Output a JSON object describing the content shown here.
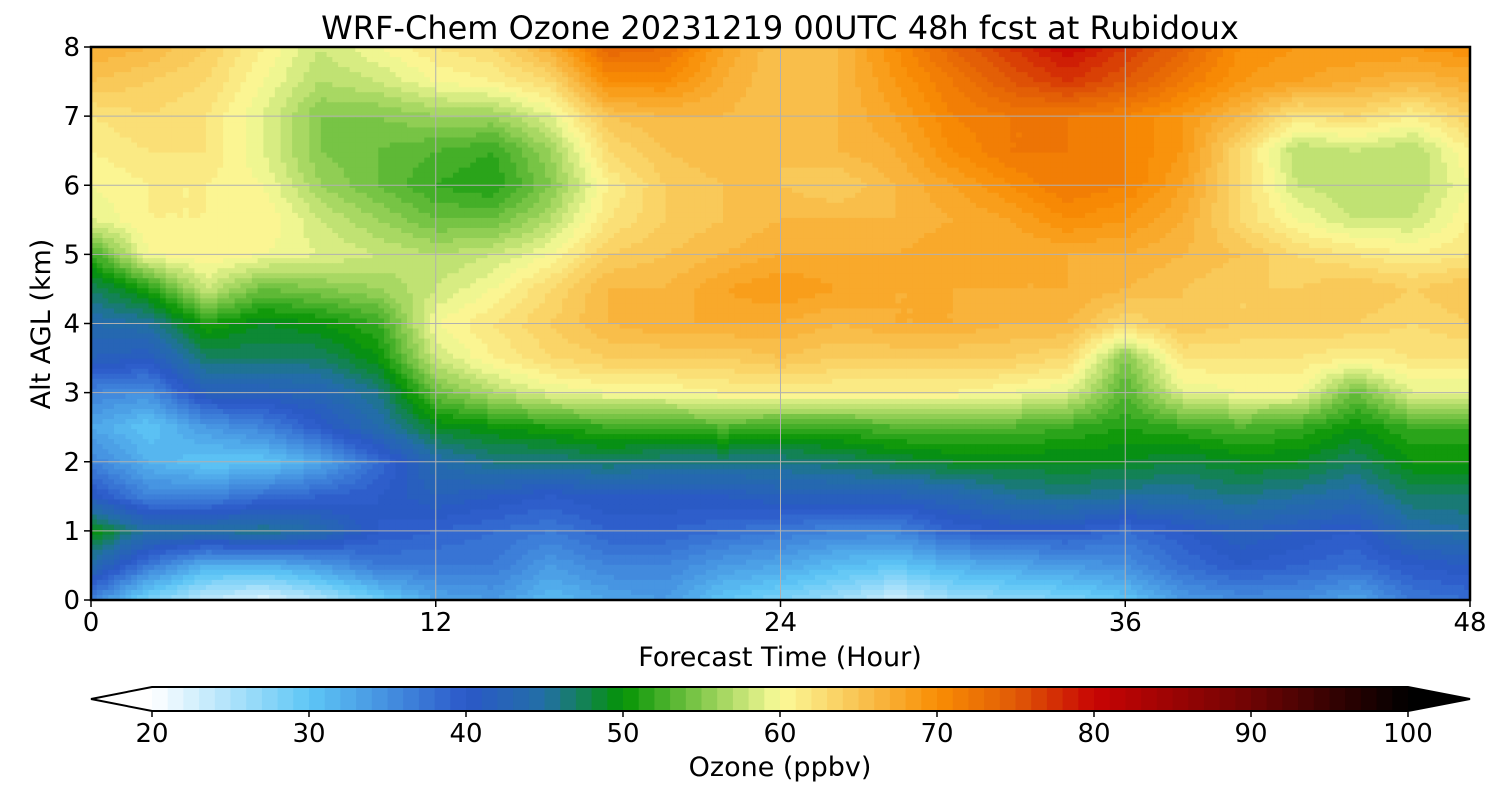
{
  "chart_data": {
    "type": "heatmap",
    "title": "WRF-Chem Ozone  20231219 00UTC 48h fcst at Rubidoux",
    "xlabel": "Forecast Time (Hour)",
    "ylabel": "Alt AGL (km)",
    "xlim": [
      0,
      48
    ],
    "ylim": [
      0,
      8
    ],
    "x_ticks": [
      "0",
      "12",
      "24",
      "36",
      "48"
    ],
    "y_ticks": [
      "0",
      "1",
      "2",
      "3",
      "4",
      "5",
      "6",
      "7",
      "8"
    ],
    "grid": true,
    "x": [
      0,
      2,
      4,
      6,
      8,
      10,
      12,
      14,
      16,
      18,
      20,
      22,
      24,
      26,
      28,
      30,
      32,
      34,
      36,
      38,
      40,
      42,
      44,
      46,
      48
    ],
    "y": [
      0,
      0.5,
      1,
      1.5,
      2,
      2.5,
      3,
      3.5,
      4,
      4.5,
      5,
      5.5,
      6,
      6.5,
      7,
      7.5,
      8
    ],
    "z_ppbv": [
      [
        36,
        28,
        24,
        22,
        25,
        29,
        33,
        34,
        31,
        33,
        34,
        30,
        28,
        26,
        23,
        26,
        27,
        28,
        30,
        34,
        35,
        35,
        33,
        37,
        38
      ],
      [
        44,
        37,
        32,
        32,
        34,
        37,
        37,
        37,
        34,
        36,
        36,
        34,
        33,
        31,
        30,
        32,
        33,
        34,
        35,
        38,
        40,
        39,
        38,
        40,
        41
      ],
      [
        50,
        45,
        45,
        46,
        44,
        40,
        39,
        38,
        37,
        39,
        39,
        38,
        37,
        36,
        36,
        39,
        40,
        40,
        38,
        40,
        42,
        41,
        40,
        44,
        45
      ],
      [
        41,
        36,
        36,
        38,
        39,
        40,
        42,
        41,
        40,
        41,
        41,
        41,
        42,
        42,
        42,
        43,
        45,
        46,
        45,
        45,
        46,
        45,
        44,
        47,
        47
      ],
      [
        36,
        32,
        30,
        30,
        33,
        38,
        44,
        46,
        46,
        47,
        46,
        46,
        46,
        47,
        48,
        49,
        49,
        49,
        49,
        48,
        49,
        49,
        47,
        50,
        50
      ],
      [
        33,
        30,
        34,
        36,
        40,
        44,
        49,
        50,
        51,
        52,
        52,
        53,
        52,
        52,
        53,
        53,
        53,
        52,
        51,
        52,
        53,
        52,
        50,
        52,
        52
      ],
      [
        36,
        35,
        42,
        42,
        43,
        46,
        54,
        57,
        59,
        60,
        60,
        61,
        61,
        61,
        61,
        61,
        60,
        59,
        53,
        59,
        60,
        60,
        54,
        59,
        59
      ],
      [
        42,
        41,
        47,
        47,
        47,
        50,
        58,
        61,
        63,
        64,
        64,
        64,
        65,
        64,
        64,
        64,
        64,
        63,
        55,
        62,
        62,
        62,
        61,
        62,
        62
      ],
      [
        44,
        45,
        51,
        49,
        50,
        52,
        60,
        62,
        64,
        66,
        67,
        67,
        67,
        66,
        67,
        67,
        66,
        66,
        63,
        65,
        64,
        64,
        64,
        63,
        64
      ],
      [
        47,
        51,
        58,
        54,
        55,
        56,
        58,
        60,
        63,
        66,
        66,
        68,
        69,
        68,
        67,
        67,
        67,
        67,
        66,
        65,
        64,
        64,
        65,
        64,
        65
      ],
      [
        52,
        60,
        61,
        60,
        59,
        58,
        57,
        58,
        60,
        64,
        65,
        66,
        67,
        67,
        67,
        68,
        67,
        67,
        67,
        66,
        65,
        63,
        62,
        61,
        62
      ],
      [
        59,
        61,
        61,
        61,
        58,
        56,
        54,
        54,
        57,
        62,
        64,
        65,
        66,
        66,
        66,
        67,
        68,
        70,
        69,
        67,
        63,
        60,
        58,
        58,
        61
      ],
      [
        60,
        61,
        61,
        60,
        56,
        54,
        52,
        51,
        55,
        61,
        64,
        65,
        65,
        64,
        66,
        68,
        70,
        72,
        71,
        68,
        63,
        58,
        57,
        57,
        60
      ],
      [
        61,
        62,
        62,
        59,
        55,
        54,
        53,
        52,
        56,
        63,
        65,
        66,
        65,
        66,
        67,
        70,
        72,
        72,
        71,
        69,
        63,
        57,
        58,
        57,
        61
      ],
      [
        62,
        63,
        62,
        59,
        55,
        55,
        56,
        56,
        59,
        65,
        66,
        66,
        65,
        66,
        68,
        71,
        72,
        72,
        71,
        69,
        66,
        62,
        63,
        61,
        64
      ],
      [
        65,
        64,
        63,
        60,
        57,
        58,
        60,
        61,
        63,
        70,
        70,
        67,
        65,
        66,
        69,
        72,
        75,
        77,
        75,
        72,
        69,
        68,
        67,
        66,
        67
      ],
      [
        67,
        66,
        64,
        61,
        58,
        60,
        62,
        63,
        67,
        74,
        73,
        68,
        65,
        66,
        70,
        74,
        77,
        80,
        77,
        74,
        70,
        69,
        69,
        69,
        70
      ]
    ],
    "colorbar": {
      "label": "Ozone  (ppbv)",
      "range": [
        20,
        100
      ],
      "ticks": [
        "20",
        "30",
        "40",
        "50",
        "60",
        "70",
        "80",
        "90",
        "100"
      ],
      "extend": "both",
      "colors": [
        {
          "v": 20,
          "c": "#ffffff"
        },
        {
          "v": 30,
          "c": "#5ec6f6"
        },
        {
          "v": 40,
          "c": "#2b58c9"
        },
        {
          "v": 45,
          "c": "#226fa5"
        },
        {
          "v": 50,
          "c": "#049404"
        },
        {
          "v": 55,
          "c": "#84c94c"
        },
        {
          "v": 60,
          "c": "#fbfb99"
        },
        {
          "v": 65,
          "c": "#f9c352"
        },
        {
          "v": 70,
          "c": "#f98e04"
        },
        {
          "v": 75,
          "c": "#e05a06"
        },
        {
          "v": 80,
          "c": "#c80404"
        },
        {
          "v": 90,
          "c": "#6e0404"
        },
        {
          "v": 100,
          "c": "#000000"
        }
      ]
    }
  }
}
